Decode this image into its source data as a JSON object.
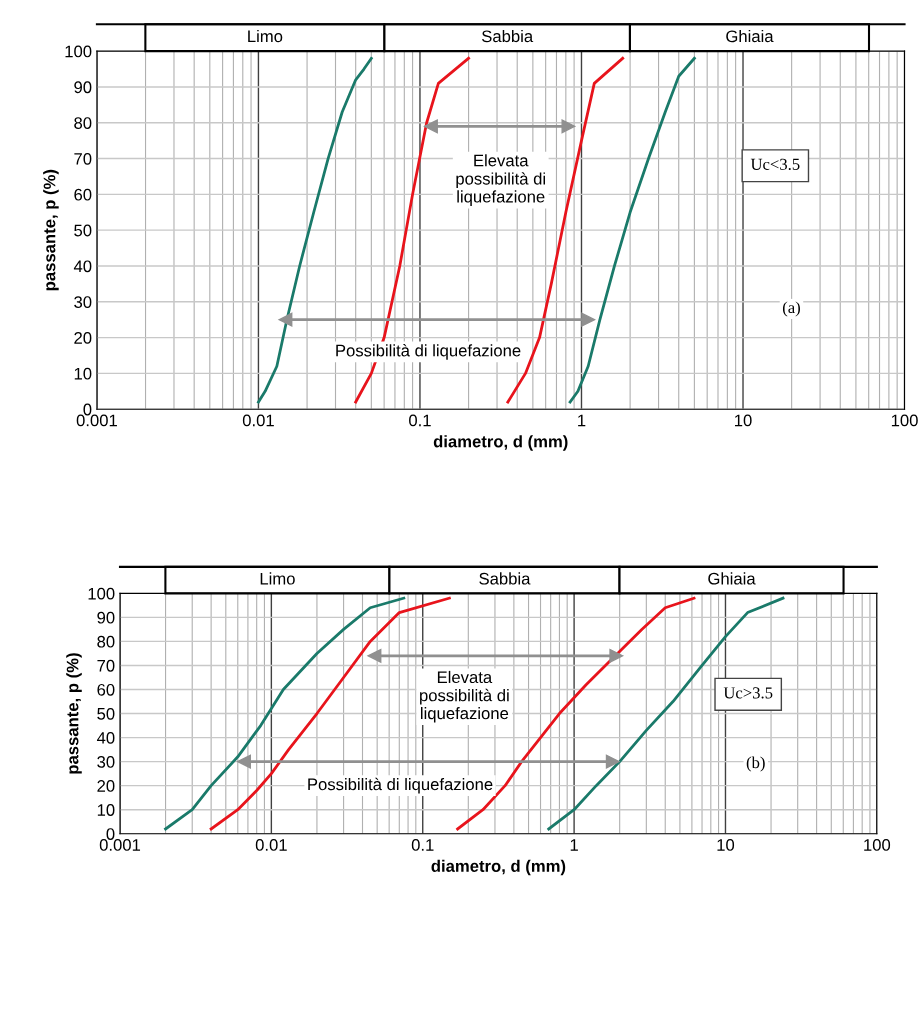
{
  "chart_data": [
    {
      "type": "line",
      "xlabel": "diametro, d (mm)",
      "ylabel": "passante, p (%)",
      "log": "x",
      "grid": true,
      "xlim": [
        0.001,
        100
      ],
      "xticks": [
        0.001,
        0.01,
        0.1,
        1,
        10,
        100
      ],
      "ylim": [
        0,
        100
      ],
      "yticks": [
        0,
        10,
        20,
        30,
        40,
        50,
        60,
        70,
        80,
        90,
        100
      ],
      "series": [
        {
          "color": "#1a7a6a",
          "x": [
            0.01,
            0.011,
            0.013,
            0.015,
            0.018,
            0.022,
            0.027,
            0.033,
            0.04,
            0.045,
            0.05
          ],
          "values": [
            2,
            5,
            12,
            25,
            40,
            55,
            70,
            83,
            92,
            95,
            98
          ]
        },
        {
          "color": "#e8141c",
          "x": [
            0.04,
            0.05,
            0.06,
            0.075,
            0.09,
            0.11,
            0.13,
            0.2
          ],
          "values": [
            2,
            10,
            20,
            40,
            60,
            80,
            91,
            98
          ]
        },
        {
          "color": "#e8141c",
          "x": [
            0.35,
            0.45,
            0.55,
            0.65,
            0.8,
            1.0,
            1.2,
            1.8
          ],
          "values": [
            2,
            10,
            20,
            35,
            55,
            75,
            91,
            98
          ]
        },
        {
          "color": "#1a7a6a",
          "x": [
            0.85,
            0.95,
            1.1,
            1.3,
            1.6,
            2.0,
            2.6,
            3.3,
            4.0,
            5.0
          ],
          "values": [
            2,
            5,
            12,
            25,
            40,
            55,
            70,
            83,
            93,
            98
          ]
        },
        {
          "color": "#909090",
          "marker": "triangle",
          "x": [
            0.117,
            0.83
          ],
          "values": [
            79,
            79
          ]
        },
        {
          "color": "#909090",
          "marker": "triangle",
          "x": [
            0.0147,
            1.1
          ],
          "values": [
            25,
            25
          ]
        }
      ],
      "annotations": [
        "Elevata\npossibilità di\nliquefazione",
        "Possibilità di liquefazione",
        "Uc<3.5",
        "(a)",
        "Limo",
        "Sabbia",
        "Ghiaia"
      ]
    },
    {
      "type": "line",
      "xlabel": "diametro, d (mm)",
      "ylabel": "passante, p (%)",
      "log": "x",
      "grid": true,
      "xlim": [
        0.001,
        100
      ],
      "xticks": [
        0.001,
        0.01,
        0.1,
        1,
        10,
        100
      ],
      "ylim": [
        0,
        100
      ],
      "yticks": [
        0,
        10,
        20,
        30,
        40,
        50,
        60,
        70,
        80,
        90,
        100
      ],
      "series": [
        {
          "color": "#1a7a6a",
          "x": [
            0.002,
            0.003,
            0.004,
            0.006,
            0.0085,
            0.012,
            0.02,
            0.03,
            0.045,
            0.075
          ],
          "values": [
            2,
            10,
            20,
            32,
            45,
            60,
            75,
            85,
            94,
            98
          ]
        },
        {
          "color": "#e8141c",
          "x": [
            0.004,
            0.006,
            0.008,
            0.01,
            0.013,
            0.02,
            0.03,
            0.045,
            0.07,
            0.15
          ],
          "values": [
            2,
            10,
            18,
            25,
            35,
            50,
            65,
            80,
            92,
            98
          ]
        },
        {
          "color": "#e8141c",
          "x": [
            0.17,
            0.25,
            0.35,
            0.45,
            0.6,
            0.8,
            1.2,
            1.8,
            2.8,
            4.0,
            6.2
          ],
          "values": [
            2,
            10,
            20,
            30,
            40,
            50,
            62,
            73,
            85,
            94,
            98
          ]
        },
        {
          "color": "#1a7a6a",
          "x": [
            0.68,
            1.0,
            1.4,
            2.0,
            3.0,
            4.5,
            7.0,
            10,
            14,
            24
          ],
          "values": [
            2,
            10,
            20,
            30,
            43,
            55,
            70,
            82,
            92,
            98
          ]
        },
        {
          "color": "#909090",
          "marker": "triangle",
          "x": [
            0.048,
            1.9
          ],
          "values": [
            74,
            74
          ]
        },
        {
          "color": "#909090",
          "marker": "triangle",
          "x": [
            0.0066,
            1.8
          ],
          "values": [
            30,
            30
          ]
        }
      ],
      "annotations": [
        "Elevata\npossibilità di\nliquefazione",
        "Possibilità di liquefazione",
        "Uc>3.5",
        "(b)",
        "Limo",
        "Sabbia",
        "Ghiaia"
      ]
    }
  ]
}
